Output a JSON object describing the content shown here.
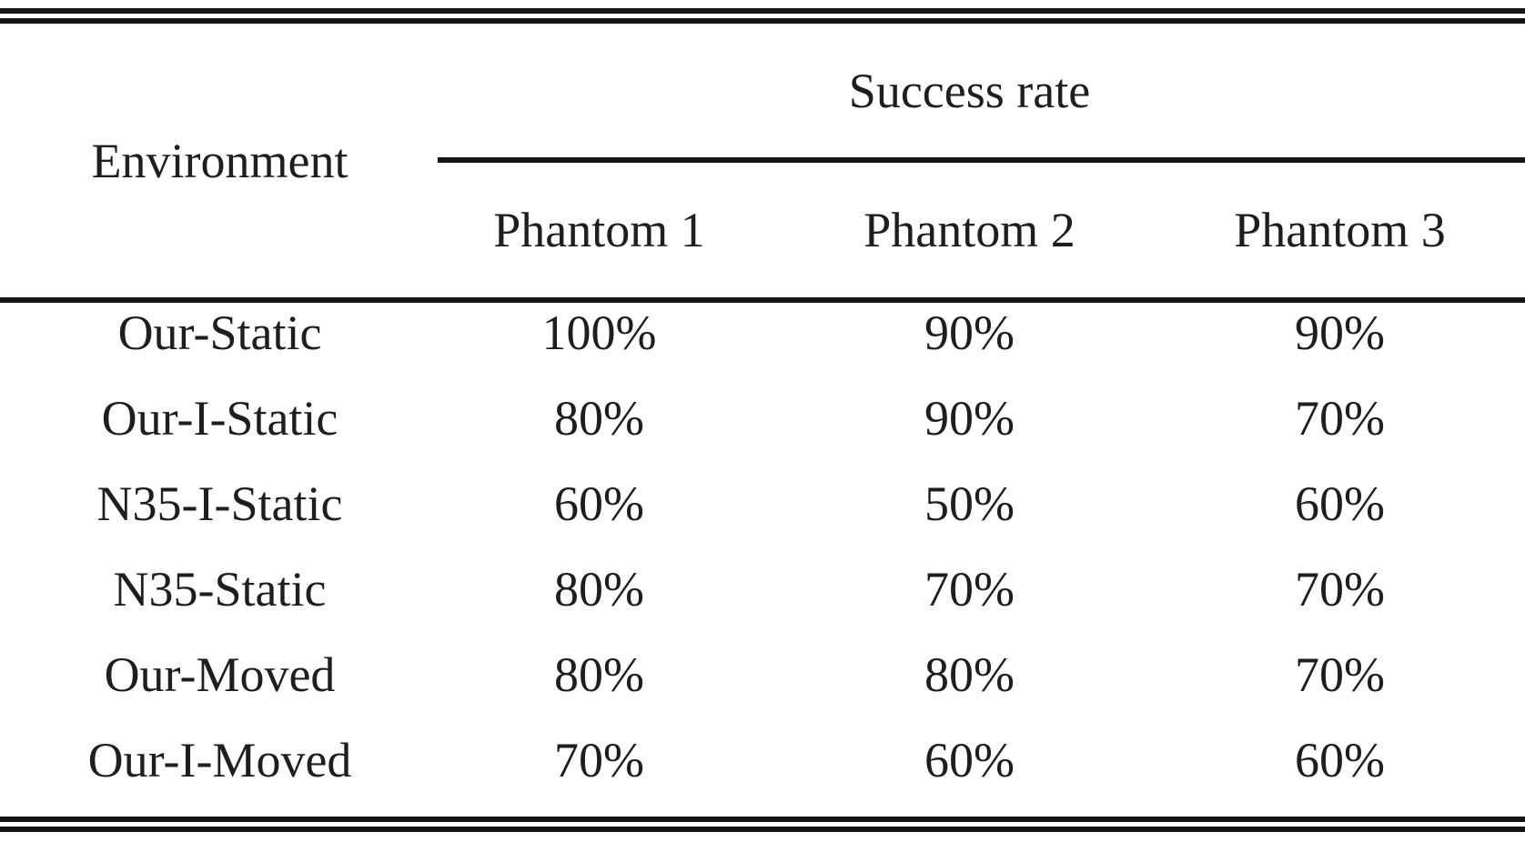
{
  "table": {
    "col1_header": "Environment",
    "group_header": "Success rate",
    "sub_headers": [
      "Phantom 1",
      "Phantom 2",
      "Phantom 3"
    ],
    "rows": [
      {
        "env": "Our-Static",
        "values": [
          "100%",
          "90%",
          "90%"
        ]
      },
      {
        "env": "Our-I-Static",
        "values": [
          "80%",
          "90%",
          "70%"
        ]
      },
      {
        "env": "N35-I-Static",
        "values": [
          "60%",
          "50%",
          "60%"
        ]
      },
      {
        "env": "N35-Static",
        "values": [
          "80%",
          "70%",
          "70%"
        ]
      },
      {
        "env": "Our-Moved",
        "values": [
          "80%",
          "80%",
          "70%"
        ]
      },
      {
        "env": "Our-I-Moved",
        "values": [
          "70%",
          "60%",
          "60%"
        ]
      }
    ]
  },
  "colors": {
    "text": "#1f1d1e",
    "rule": "#161414",
    "background": "#ffffff"
  },
  "chart_data": {
    "type": "table",
    "title": "Success rate",
    "columns": [
      "Environment",
      "Phantom 1",
      "Phantom 2",
      "Phantom 3"
    ],
    "rows": [
      [
        "Our-Static",
        "100%",
        "90%",
        "90%"
      ],
      [
        "Our-I-Static",
        "80%",
        "90%",
        "70%"
      ],
      [
        "N35-I-Static",
        "60%",
        "50%",
        "60%"
      ],
      [
        "N35-Static",
        "80%",
        "70%",
        "70%"
      ],
      [
        "Our-Moved",
        "80%",
        "80%",
        "70%"
      ],
      [
        "Our-I-Moved",
        "70%",
        "60%",
        "60%"
      ]
    ]
  }
}
